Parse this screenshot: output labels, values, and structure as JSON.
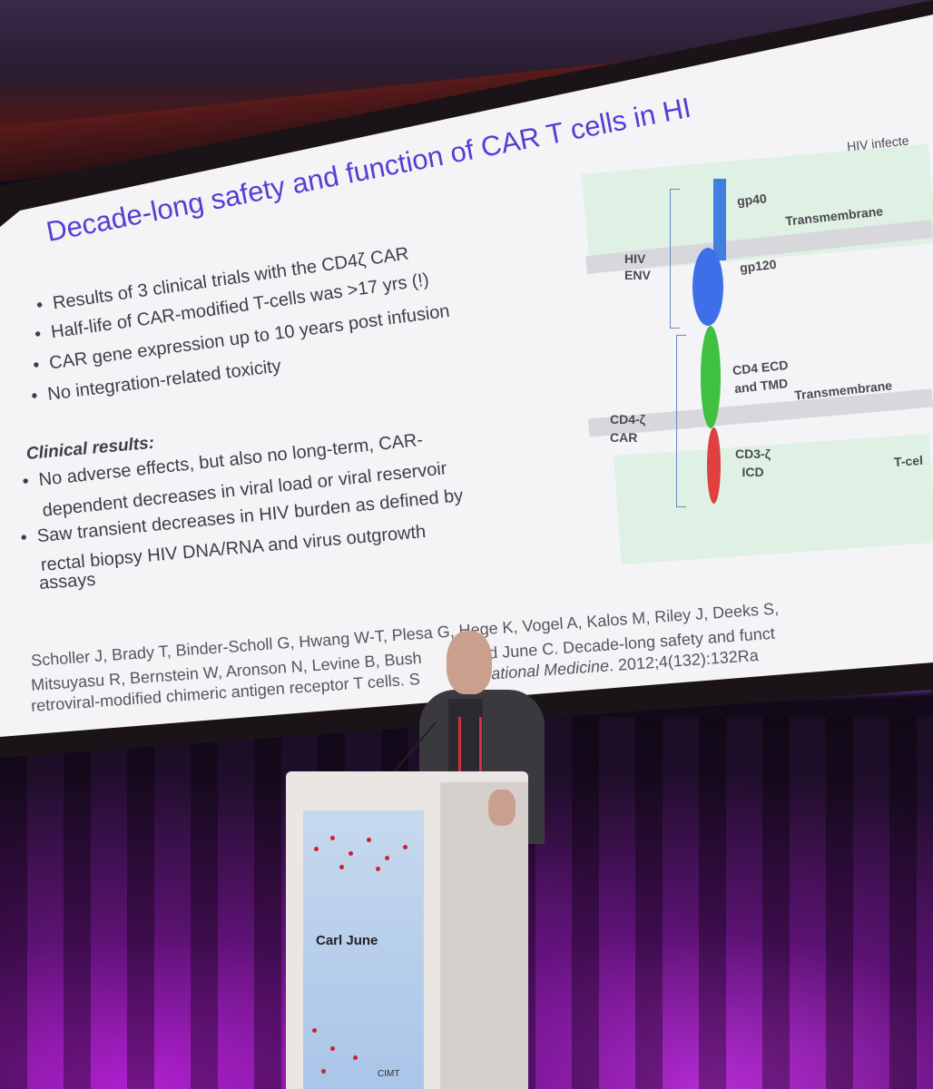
{
  "slide": {
    "title": "Decade-long safety and function of CAR T cells in HI",
    "bullets": [
      "Results of 3 clinical trials with the CD4ζ CAR",
      "Half-life of CAR-modified T-cells was >17 yrs (!)",
      "CAR gene expression up to 10 years post infusion",
      "No integration-related toxicity"
    ],
    "clinical_heading": "Clinical results:",
    "clinical_lines": [
      "No adverse effects, but also no long-term, CAR-",
      "dependent decreases in viral load or viral reservoir",
      "Saw transient decreases in HIV burden as defined by",
      "rectal biopsy HIV DNA/RNA and virus outgrowth",
      "assays"
    ],
    "reference": [
      "Scholler J, Brady T, Binder-Scholl G, Hwang W-T, Plesa G, Hege K, Vogel A, Kalos M, Riley J, Deeks S,",
      "Mitsuyasu R, Bernstein W, Aronson N, Levine B, Bush",
      "F, and June C. Decade-long safety and funct",
      "Translational Medicine",
      ". 2012;4(132):132Ra",
      "retroviral-modified chimeric antigen receptor T cells. S"
    ],
    "diagram": {
      "hiv_infected": "HIV infecte",
      "gp40": "gp40",
      "transmembrane_top": "Transmembrane",
      "hiv_env": [
        "HIV",
        "ENV"
      ],
      "gp120": "gp120",
      "cd4_ecd": [
        "CD4 ECD",
        "and TMD"
      ],
      "transmembrane_bottom": "Transmembrane",
      "cd4_car": [
        "CD4-ζ",
        "CAR"
      ],
      "cd3_icd": [
        "CD3-ζ",
        "ICD"
      ],
      "t_cell": "T-cel",
      "colors": {
        "gp40": "#3f7fe0",
        "gp120": "#3f6fe8",
        "cd4": "#40c040",
        "cd3": "#e04040",
        "title": "#5a3bd4"
      }
    }
  },
  "podium": {
    "speaker_name": "Carl June",
    "logo_text": "CIMT"
  }
}
